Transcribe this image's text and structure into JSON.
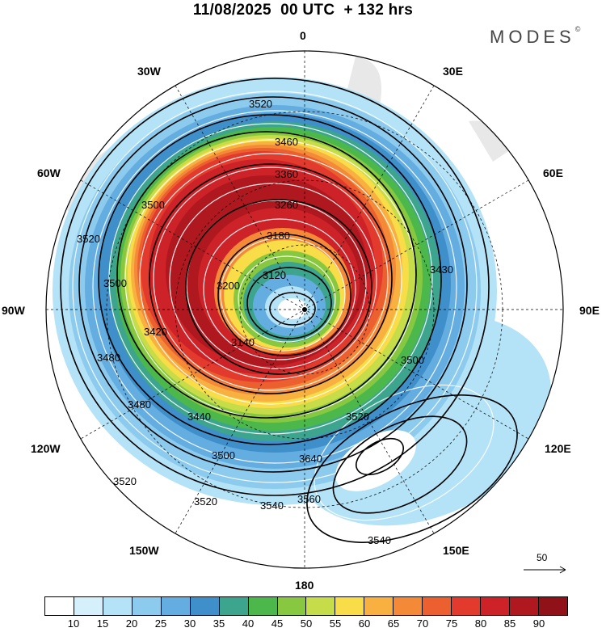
{
  "header": {
    "title": "11/08/2025  00 UTC  + 132 hrs"
  },
  "brand": {
    "name": "MODES",
    "mark": "©"
  },
  "longitudes": {
    "top": "0",
    "bottom": "180",
    "left": "90W",
    "right": "90E",
    "upper_left": "30W",
    "upper_right": "30E",
    "mid_left": "60W",
    "mid_right": "60E",
    "lower_left": "120W",
    "lower_right": "120E",
    "bottom_left": "150W",
    "bottom_right": "150E"
  },
  "contours": {
    "c3520a": "3520",
    "c3460": "3460",
    "c3360": "3360",
    "c3260": "3260",
    "c3180": "3180",
    "c3120": "3120",
    "c3200": "3200",
    "c3500a": "3500",
    "c3520b": "3520",
    "c3500b": "3500",
    "c3480a": "3480",
    "c3420": "3420",
    "c3140": "3140",
    "c3480b": "3480",
    "c3440": "3440",
    "c3430": "3430",
    "c3500c": "3500",
    "c3500d": "3500",
    "c3520c": "3520",
    "c3640": "3640",
    "c3560": "3560",
    "c3540a": "3540",
    "c3540b": "3540",
    "c3520d": "3520",
    "c3520e": "3520"
  },
  "reference_vector": {
    "label": "50"
  },
  "colorbar": {
    "colors": [
      "#ffffff",
      "#d6f0fb",
      "#b4e2f6",
      "#8ccbee",
      "#64ade0",
      "#3f8fca",
      "#3da48e",
      "#4cb84c",
      "#88c840",
      "#c6dc48",
      "#f8dc48",
      "#f8b040",
      "#f48a38",
      "#ec6030",
      "#e23a2c",
      "#cc2228",
      "#b01820",
      "#901218"
    ],
    "ticks": [
      "10",
      "15",
      "20",
      "25",
      "30",
      "35",
      "40",
      "45",
      "50",
      "55",
      "60",
      "65",
      "70",
      "75",
      "80",
      "85",
      "90"
    ]
  }
}
